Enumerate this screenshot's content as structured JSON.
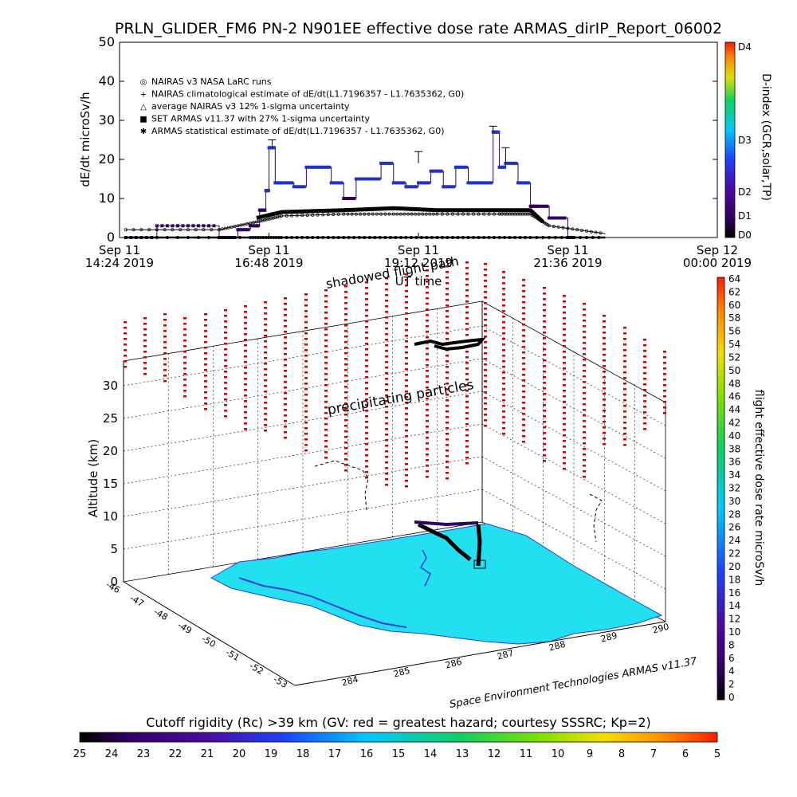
{
  "title": "PRLN_GLIDER_FM6 PN-2 N901EE effective dose rate ARMAS_dirIP_Report_06002",
  "top_chart": {
    "ylabel": "dE/dt microSv/h",
    "yticks": [
      "0",
      "10",
      "20",
      "30",
      "40",
      "50"
    ],
    "xticks": [
      {
        "l1": "Sep 11",
        "l2": "14:24 2019"
      },
      {
        "l1": "Sep 11",
        "l2": "16:48 2019"
      },
      {
        "l1": "Sep 11",
        "l2": "19:12 2019"
      },
      {
        "l1": "Sep 11",
        "l2": "21:36 2019"
      },
      {
        "l1": "Sep 12",
        "l2": "00:00 2019"
      }
    ],
    "xlabel": "UT time",
    "legend": [
      {
        "symbol": "◎",
        "text": "NAIRAS v3 NASA LaRC runs"
      },
      {
        "symbol": "+",
        "text": "NAIRAS climatological estimate of dE/dt(L1.7196357 - L1.7635362, G0)"
      },
      {
        "symbol": "△",
        "text": "average NAIRAS v3 12% 1-sigma uncertainty"
      },
      {
        "symbol": "■",
        "text": "SET ARMAS v11.37 with 27% 1-sigma uncertainty"
      },
      {
        "symbol": "✱",
        "text": "ARMAS statistical estimate of dE/dt(L1.7196357 - L1.7635362, G0)"
      }
    ],
    "dindex_label": "D-index (GCR,solar,TP)",
    "dindex_ticks": [
      "D4",
      "D3",
      "D2",
      "D1",
      "D0"
    ]
  },
  "chart_data": [
    {
      "type": "line",
      "title": "PRLN_GLIDER_FM6 PN-2 N901EE effective dose rate ARMAS_dirIP_Report_06002",
      "xlabel": "UT time",
      "ylabel": "dE/dt microSv/h",
      "ylim": [
        0,
        50
      ],
      "xlim": [
        "Sep 11 14:24 2019",
        "Sep 12 00:00 2019"
      ],
      "x_unit": "hours UT on Sep 11",
      "series": [
        {
          "name": "SET ARMAS v11.37 with 27% 1-sigma uncertainty",
          "x": [
            14.5,
            15.0,
            15.5,
            16.0,
            16.3,
            16.5,
            16.65,
            16.75,
            16.8,
            16.9,
            17.0,
            17.2,
            17.4,
            17.6,
            17.8,
            18.0,
            18.2,
            18.4,
            18.6,
            18.8,
            19.0,
            19.2,
            19.4,
            19.6,
            19.8,
            20.0,
            20.2,
            20.4,
            20.5,
            20.6,
            20.8,
            21.0,
            21.1,
            21.3,
            21.6
          ],
          "y": [
            0,
            3,
            3,
            0,
            2,
            3,
            7,
            12,
            23,
            14,
            14,
            13,
            18,
            18,
            14,
            10,
            15,
            15,
            19,
            14,
            13,
            14,
            17,
            13,
            18,
            14,
            14,
            27,
            18,
            19,
            14,
            8,
            8,
            5,
            0
          ]
        },
        {
          "name": "NAIRAS climatological estimate of dE/dt(L1.7196357 - L1.7635362, G0)",
          "x": [
            14.5,
            16.0,
            16.6,
            17.0,
            18.0,
            18.8,
            19.5,
            20.5,
            21.0,
            21.3,
            22.2
          ],
          "y": [
            2,
            2,
            4,
            5.5,
            6,
            6,
            6,
            6,
            6,
            3,
            1
          ]
        },
        {
          "name": "ARMAS statistical estimate of dE/dt(L1.7196357 - L1.7635362, G0)",
          "x": [
            16.6,
            17.0,
            18.0,
            18.8,
            19.5,
            20.5,
            21.0,
            21.2
          ],
          "y": [
            5,
            6.5,
            7,
            7.5,
            7,
            7,
            7,
            4
          ]
        },
        {
          "name": "NAIRAS v3 NASA LaRC runs",
          "x": [
            14.5,
            16.5,
            17.0,
            18.0,
            19.0,
            20.0,
            21.0,
            22.2
          ],
          "y": [
            0,
            0,
            0,
            0,
            0,
            0,
            0,
            0
          ]
        }
      ]
    },
    {
      "type": "scatter",
      "title": "shadowed flight path",
      "zlabel": "Altitude (km)",
      "zticks": [
        "0",
        "5",
        "10",
        "15",
        "20",
        "25",
        "30"
      ],
      "lat_ticks": [
        "-46",
        "-47",
        "-48",
        "-49",
        "-50",
        "-51",
        "-52",
        "-53"
      ],
      "lon_ticks": [
        "284",
        "285",
        "286",
        "287",
        "288",
        "289",
        "290"
      ],
      "annotation": "precipitating particles",
      "colorbar": {
        "label": "flight effective dose rate microSv/h",
        "ticks": [
          "0",
          "2",
          "4",
          "6",
          "8",
          "10",
          "12",
          "14",
          "16",
          "18",
          "20",
          "22",
          "24",
          "26",
          "28",
          "30",
          "32",
          "34",
          "36",
          "38",
          "40",
          "42",
          "44",
          "46",
          "48",
          "50",
          "52",
          "54",
          "56",
          "58",
          "60",
          "62",
          "64"
        ]
      },
      "credit": "Space Environment Technologies ARMAS v11.37"
    }
  ],
  "bottom_bar": {
    "label": "Cutoff rigidity (Rc) >39 km (GV: red = greatest hazard; courtesy SSSRC; Kp=2)",
    "ticks": [
      "25",
      "24",
      "23",
      "22",
      "21",
      "20",
      "19",
      "18",
      "17",
      "16",
      "15",
      "14",
      "13",
      "12",
      "11",
      "10",
      "9",
      "8",
      "7",
      "6",
      "5"
    ]
  },
  "colors": {
    "armas": "#2233cc",
    "armas_dark": "#330066",
    "land": "#22e0f0",
    "particles": "#cc0000",
    "flight": "#000000"
  }
}
